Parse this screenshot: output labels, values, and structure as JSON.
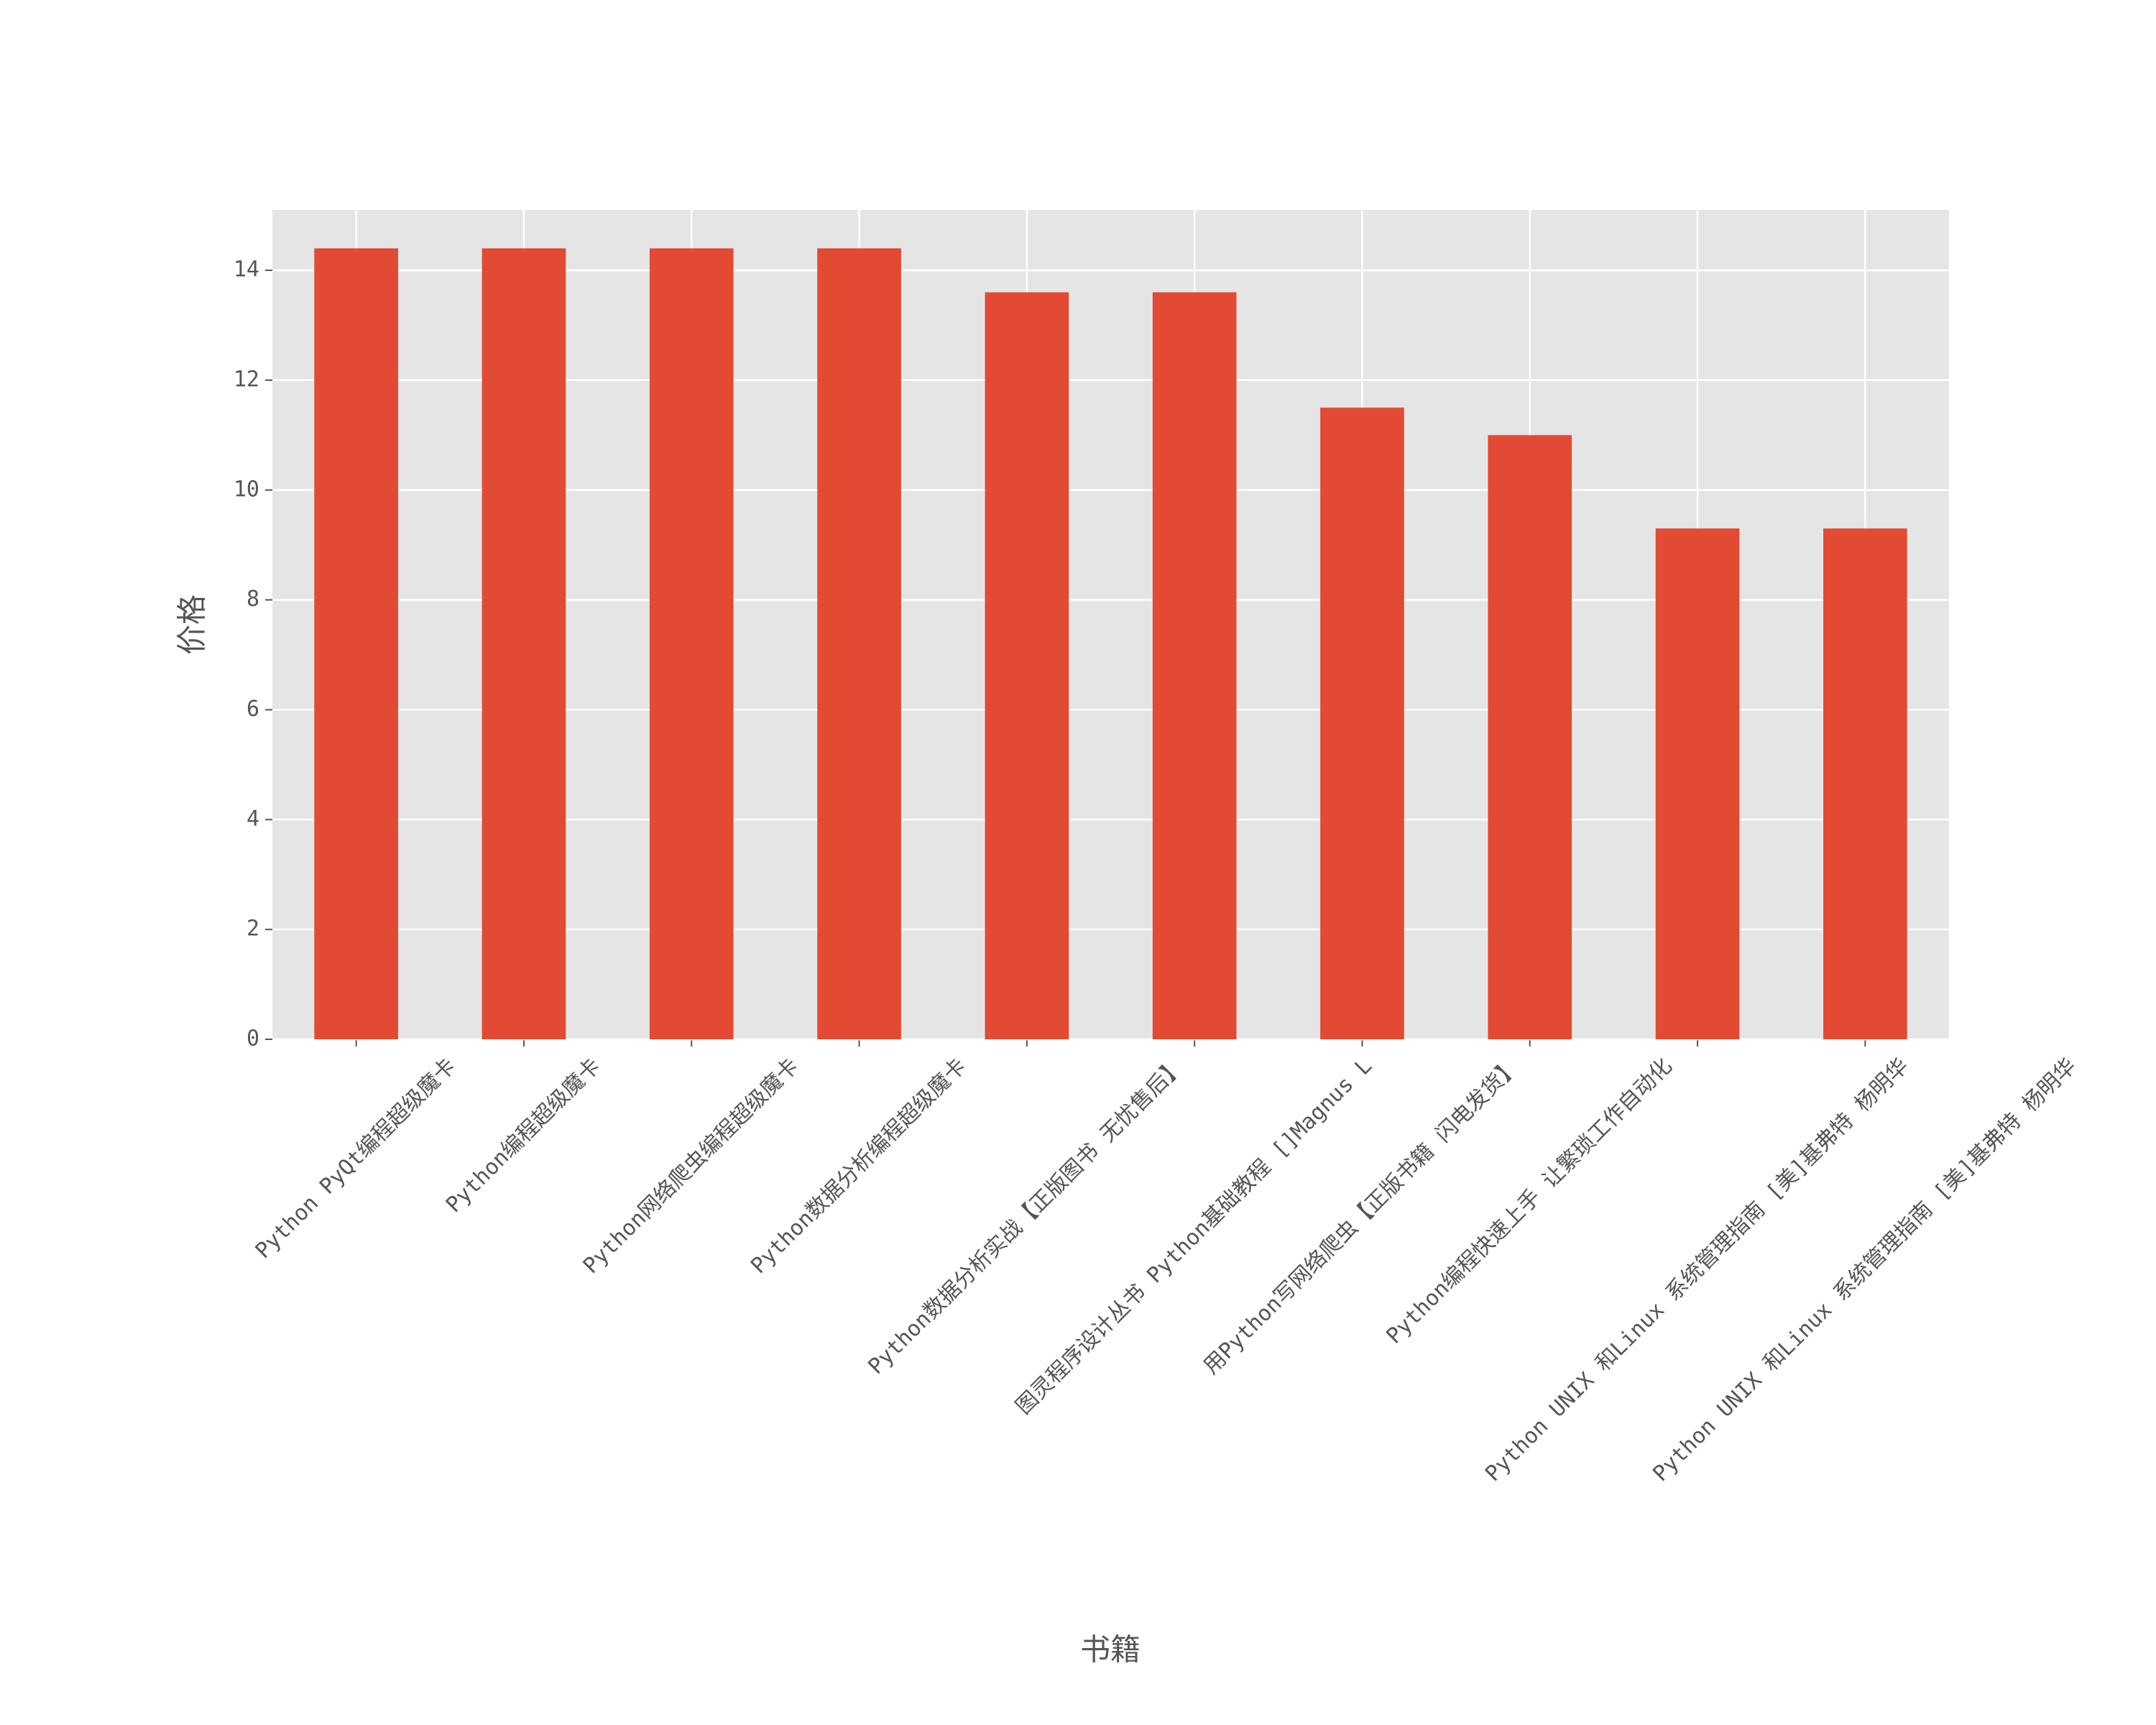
{
  "chart_data": {
    "type": "bar",
    "x_label": "书籍",
    "y_label": "价格",
    "categories": [
      "Python PyQt编程超级魔卡",
      "Python编程超级魔卡",
      "Python网络爬虫编程超级魔卡",
      "Python数据分析编程超级魔卡",
      "Python数据分析实战【正版图书 无忧售后】",
      "图灵程序设计丛书 Python基础教程 []Magnus L",
      "用Python写网络爬虫【正版书籍 闪电发货】",
      "Python编程快速上手 让繁琐工作自动化",
      "Python UNIX 和Linux 系统管理指南 [美]基弗特 杨明华",
      "Python UNIX 和Linux 系统管理指南 [美]基弗特 杨明华"
    ],
    "values": [
      14.4,
      14.4,
      14.4,
      14.4,
      13.6,
      13.6,
      11.5,
      11.0,
      9.3,
      9.3
    ],
    "color": "#E24A33",
    "ylim": [
      0,
      15.1
    ],
    "yticks": [
      0,
      2,
      4,
      6,
      8,
      10,
      12,
      14
    ],
    "grid": true
  }
}
